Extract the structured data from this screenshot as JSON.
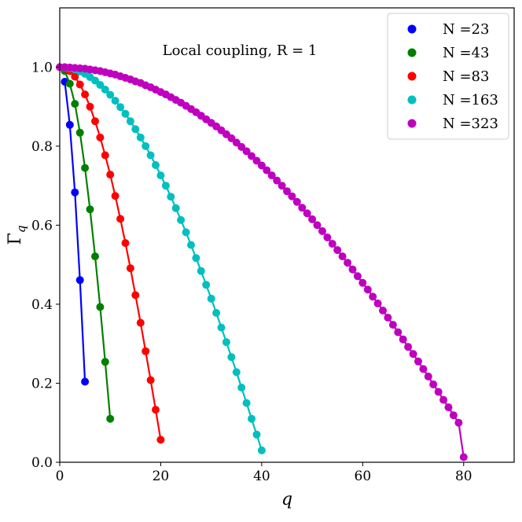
{
  "chart_data": {
    "type": "line",
    "annotation": "Local coupling, R = 1",
    "xlabel": "q",
    "ylabel": "Γq",
    "xlim": [
      0,
      90
    ],
    "ylim": [
      0,
      1.15
    ],
    "xticks": [
      0,
      20,
      40,
      60,
      80
    ],
    "yticks": [
      0.0,
      0.2,
      0.4,
      0.6,
      0.8,
      1.0
    ],
    "xtick_labels": [
      "0",
      "20",
      "40",
      "60",
      "80"
    ],
    "ytick_labels": [
      "0.0",
      "0.2",
      "0.4",
      "0.6",
      "0.8",
      "1.0"
    ],
    "grid": false,
    "legend_position": "top-right",
    "series": [
      {
        "name": "N =23",
        "color": "#0000ff",
        "x": [
          1,
          2,
          3,
          4,
          5
        ],
        "y": [
          0.963,
          0.854,
          0.683,
          0.461,
          0.204
        ]
      },
      {
        "name": "N =43",
        "color": "#008000",
        "x": [
          1,
          2,
          3,
          4,
          5,
          6,
          7,
          8,
          9,
          10
        ],
        "y": [
          0.99,
          0.958,
          0.907,
          0.834,
          0.745,
          0.64,
          0.521,
          0.393,
          0.254,
          0.11
        ]
      },
      {
        "name": "N =83",
        "color": "#ff0000",
        "x": [
          1,
          2,
          3,
          4,
          5,
          6,
          7,
          8,
          9,
          10,
          11,
          12,
          13,
          14,
          15,
          16,
          17,
          18,
          19,
          20
        ],
        "y": [
          0.997,
          0.99,
          0.976,
          0.956,
          0.931,
          0.9,
          0.863,
          0.822,
          0.777,
          0.728,
          0.674,
          0.616,
          0.555,
          0.491,
          0.423,
          0.353,
          0.281,
          0.208,
          0.133,
          0.057
        ]
      },
      {
        "name": "N =163",
        "color": "#00bfbf",
        "x": [
          1,
          2,
          3,
          4,
          5,
          6,
          7,
          8,
          9,
          10,
          11,
          12,
          13,
          14,
          15,
          16,
          17,
          18,
          19,
          20,
          21,
          22,
          23,
          24,
          25,
          26,
          27,
          28,
          29,
          30,
          31,
          32,
          33,
          34,
          35,
          36,
          37,
          38,
          39,
          40
        ],
        "y": [
          0.999,
          0.997,
          0.994,
          0.989,
          0.983,
          0.975,
          0.966,
          0.955,
          0.943,
          0.93,
          0.915,
          0.899,
          0.882,
          0.863,
          0.843,
          0.822,
          0.8,
          0.777,
          0.752,
          0.726,
          0.7,
          0.672,
          0.643,
          0.613,
          0.582,
          0.55,
          0.517,
          0.484,
          0.449,
          0.414,
          0.378,
          0.341,
          0.304,
          0.266,
          0.228,
          0.189,
          0.15,
          0.11,
          0.07,
          0.03
        ]
      },
      {
        "name": "N =323",
        "color": "#bf00bf",
        "x": [
          0,
          1,
          2,
          3,
          4,
          5,
          6,
          7,
          8,
          9,
          10,
          11,
          12,
          13,
          14,
          15,
          16,
          17,
          18,
          19,
          20,
          21,
          22,
          23,
          24,
          25,
          26,
          27,
          28,
          29,
          30,
          31,
          32,
          33,
          34,
          35,
          36,
          37,
          38,
          39,
          40,
          41,
          42,
          43,
          44,
          45,
          46,
          47,
          48,
          49,
          50,
          51,
          52,
          53,
          54,
          55,
          56,
          57,
          58,
          59,
          60,
          61,
          62,
          63,
          64,
          65,
          66,
          67,
          68,
          69,
          70,
          71,
          72,
          73,
          74,
          75,
          76,
          77,
          78,
          79,
          80
        ],
        "y": [
          1.0,
          1.0,
          0.999,
          0.998,
          0.997,
          0.996,
          0.994,
          0.992,
          0.99,
          0.987,
          0.984,
          0.981,
          0.977,
          0.973,
          0.969,
          0.964,
          0.96,
          0.954,
          0.949,
          0.943,
          0.937,
          0.931,
          0.924,
          0.917,
          0.91,
          0.902,
          0.894,
          0.886,
          0.877,
          0.868,
          0.859,
          0.85,
          0.84,
          0.83,
          0.82,
          0.809,
          0.798,
          0.787,
          0.775,
          0.763,
          0.751,
          0.739,
          0.726,
          0.713,
          0.7,
          0.686,
          0.673,
          0.659,
          0.644,
          0.63,
          0.615,
          0.6,
          0.585,
          0.569,
          0.553,
          0.537,
          0.521,
          0.505,
          0.488,
          0.471,
          0.454,
          0.437,
          0.419,
          0.402,
          0.384,
          0.366,
          0.348,
          0.329,
          0.311,
          0.292,
          0.274,
          0.255,
          0.236,
          0.217,
          0.197,
          0.178,
          0.158,
          0.139,
          0.119,
          0.1,
          0.013
        ]
      }
    ]
  }
}
